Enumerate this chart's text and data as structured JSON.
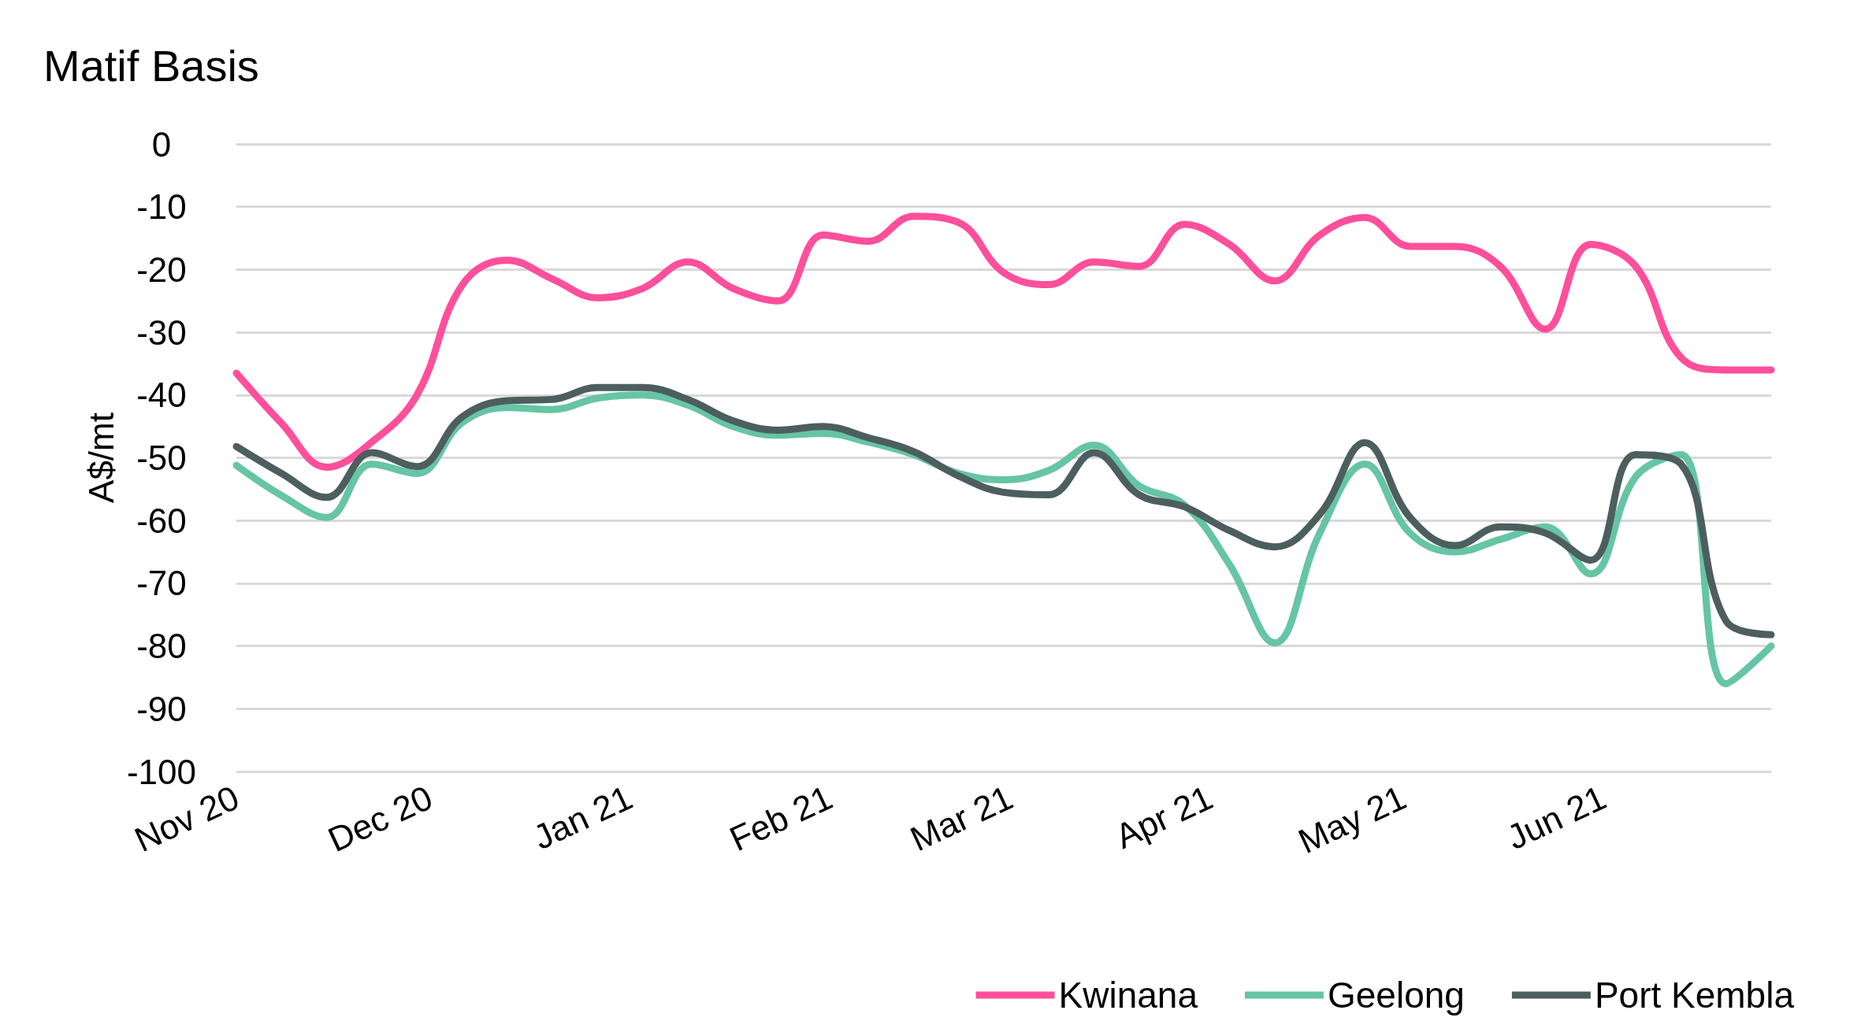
{
  "chart_data": {
    "type": "line",
    "title": "Matif Basis",
    "ylabel": "A$/mt",
    "x": [
      "2020-11-01",
      "2020-11-08",
      "2020-11-15",
      "2020-11-22",
      "2020-11-29",
      "2020-12-06",
      "2020-12-13",
      "2020-12-20",
      "2020-12-27",
      "2021-01-03",
      "2021-01-10",
      "2021-01-17",
      "2021-01-24",
      "2021-01-31",
      "2021-02-07",
      "2021-02-14",
      "2021-02-21",
      "2021-02-28",
      "2021-03-07",
      "2021-03-14",
      "2021-03-21",
      "2021-03-28",
      "2021-04-04",
      "2021-04-11",
      "2021-04-18",
      "2021-04-25",
      "2021-05-02",
      "2021-05-09",
      "2021-05-16",
      "2021-05-23",
      "2021-05-30",
      "2021-06-06",
      "2021-06-13",
      "2021-06-20",
      "2021-06-27"
    ],
    "series": [
      {
        "name": "Kwinana",
        "color": "#ff4f9b",
        "values": [
          -36.5,
          -44.5,
          -51.5,
          -47.5,
          -40,
          -22.5,
          -18.5,
          -21.5,
          -24.5,
          -23,
          -18.8,
          -23,
          -25,
          -14.5,
          -15.5,
          -11.5,
          -12.5,
          -20.5,
          -22.4,
          -18.8,
          -19.5,
          -12.8,
          -16,
          -21.8,
          -14.5,
          -11.7,
          -16.3,
          -16.3,
          -19.5,
          -29.5,
          -16,
          -19.5,
          -34,
          -36,
          -36
        ]
      },
      {
        "name": "Geelong",
        "color": "#66c5a3",
        "values": [
          -51.2,
          -56,
          -59.5,
          -51,
          -52.5,
          -44.4,
          -42,
          -42.3,
          -40.5,
          -40,
          -41.6,
          -45,
          -46.4,
          -46.1,
          -47.5,
          -49.5,
          -52.5,
          -53.5,
          -52,
          -48,
          -54.5,
          -57.5,
          -67,
          -79.5,
          -62,
          -51,
          -62,
          -65,
          -63,
          -61,
          -68.5,
          -53,
          -49.5,
          -86,
          -80
        ]
      },
      {
        "name": "Port Kembla",
        "color": "#4d5e5e",
        "values": [
          -48.2,
          -52.5,
          -56.3,
          -49.2,
          -51.4,
          -43.5,
          -40.9,
          -40.7,
          -38.8,
          -38.8,
          -40.7,
          -44.1,
          -45.6,
          -45,
          -46.8,
          -49,
          -52.9,
          -55.5,
          -55.9,
          -49.2,
          -55.9,
          -57.8,
          -61.6,
          -64.2,
          -59,
          -47.6,
          -59.5,
          -64,
          -61,
          -62,
          -66.3,
          -49.5,
          -51,
          -76,
          -78.2
        ]
      }
    ],
    "xlim": [
      "2020-11-01",
      "2021-06-27"
    ],
    "xticks": [
      {
        "value": "2020-11-01",
        "label": "Nov 20"
      },
      {
        "value": "2020-12-01",
        "label": "Dec 20"
      },
      {
        "value": "2021-01-01",
        "label": "Jan 21"
      },
      {
        "value": "2021-02-01",
        "label": "Feb 21"
      },
      {
        "value": "2021-03-01",
        "label": "Mar 21"
      },
      {
        "value": "2021-04-01",
        "label": "Apr 21"
      },
      {
        "value": "2021-05-01",
        "label": "May 21"
      },
      {
        "value": "2021-06-01",
        "label": "Jun 21"
      }
    ],
    "ylim": [
      -100,
      0
    ],
    "yticks": [
      -100,
      -90,
      -80,
      -70,
      -60,
      -50,
      -40,
      -30,
      -20,
      -10,
      0
    ],
    "grid": "y",
    "legend": "bottom right",
    "marker": "none",
    "line_style": "solid"
  }
}
